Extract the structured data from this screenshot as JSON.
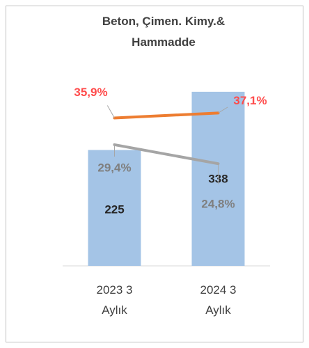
{
  "chart_data": {
    "type": "bar",
    "title": "Beton, Çimen. Kimy.& Hammadde",
    "categories": [
      "2023 3 Aylık",
      "2024 3 Aylık"
    ],
    "values": [
      225,
      338
    ],
    "color": "#a4c4e6",
    "ylim": [
      0,
      400
    ],
    "y2lim": [
      0,
      50
    ],
    "series": [
      {
        "type": "line",
        "axis": "y2",
        "color": "#ed7d31",
        "values": [
          35.9,
          37.1
        ],
        "value_labels": [
          "35,9%",
          "37,1%"
        ],
        "label_color": "#ff4b4b"
      },
      {
        "type": "line",
        "axis": "y2",
        "color": "#a5a5a5",
        "values": [
          29.4,
          24.8
        ],
        "value_labels": [
          "29,4%",
          "24,8%"
        ],
        "label_color": "#7f7f7f"
      }
    ]
  }
}
